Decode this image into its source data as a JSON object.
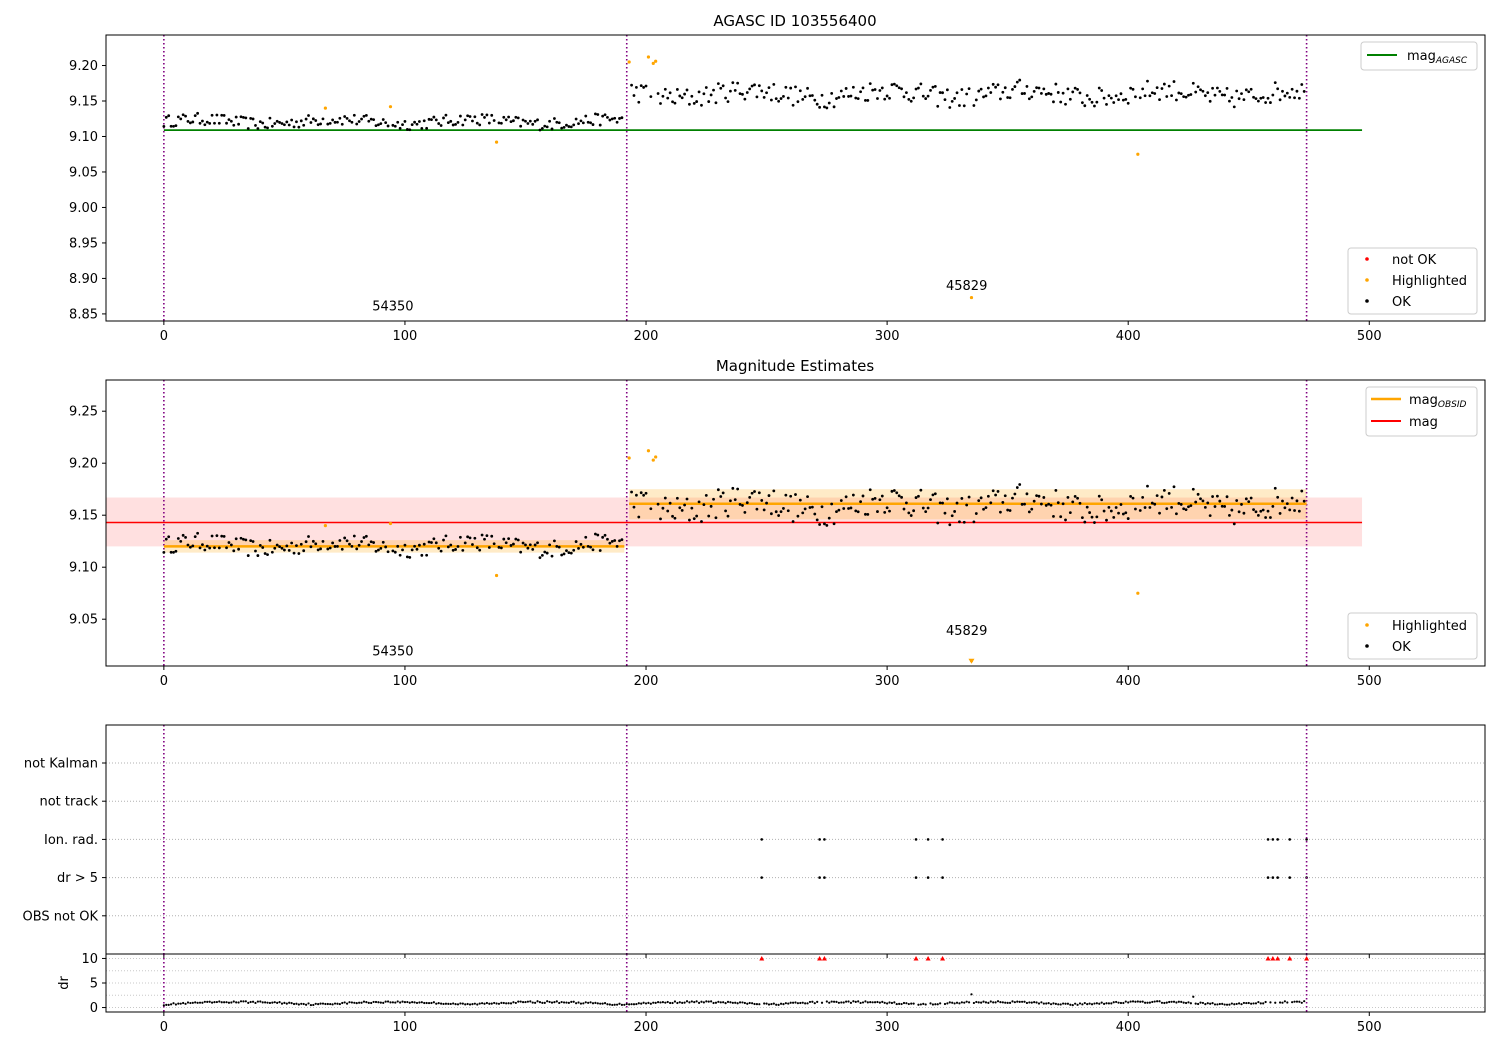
{
  "chart_data": [
    {
      "type": "scatter",
      "title": "AGASC ID 103556400",
      "xlabel": "",
      "ylabel": "",
      "xlim": [
        -24,
        548
      ],
      "ylim": [
        8.84,
        9.243
      ],
      "xticks": [
        0,
        100,
        200,
        300,
        400,
        500
      ],
      "yticks": [
        8.85,
        8.9,
        8.95,
        9.0,
        9.05,
        9.1,
        9.15,
        9.2
      ],
      "obsid_boundaries": [
        0,
        192,
        474
      ],
      "obsid_labels": [
        {
          "text": "54350",
          "x": 95,
          "y": 8.855
        },
        {
          "text": "45829",
          "x": 333,
          "y": 8.884
        }
      ],
      "lines": [
        {
          "name": "mag$_{AGASC}$",
          "label_main": "mag",
          "label_sub": "AGASC",
          "color": "#008000",
          "y": 9.109,
          "x": [
            0,
            497
          ]
        }
      ],
      "legend_points": [
        {
          "label": "not OK",
          "color": "#ff0000"
        },
        {
          "label": "Highlighted",
          "color": "#ffa500"
        },
        {
          "label": "OK",
          "color": "#000000"
        }
      ],
      "highlighted_points": {
        "x": [
          67,
          94,
          138,
          193,
          201,
          203,
          204,
          335,
          404
        ],
        "y": [
          9.14,
          9.142,
          9.092,
          9.205,
          9.212,
          9.203,
          9.206,
          8.873,
          9.075
        ]
      },
      "ok_segments": [
        {
          "x_start": 0,
          "x_end": 190,
          "mean": 9.121,
          "amplitude": 0.007
        },
        {
          "x_start": 193,
          "x_end": 473,
          "mean": 9.16,
          "amplitude": 0.012
        }
      ]
    },
    {
      "type": "scatter",
      "title": "Magnitude Estimates",
      "xlabel": "",
      "ylabel": "",
      "xlim": [
        -24,
        548
      ],
      "ylim": [
        9.005,
        9.28
      ],
      "xticks": [
        0,
        100,
        200,
        300,
        400,
        500
      ],
      "yticks": [
        9.05,
        9.1,
        9.15,
        9.2,
        9.25
      ],
      "obsid_boundaries": [
        0,
        192,
        474
      ],
      "obsid_labels": [
        {
          "text": "54350",
          "x": 95,
          "y": 9.015
        },
        {
          "text": "45829",
          "x": 333,
          "y": 9.035
        }
      ],
      "lines": [
        {
          "name": "mag$_{OBSID}$",
          "label_main": "mag",
          "label_sub": "OBSID",
          "color": "#ffa500",
          "segments": [
            {
              "x": [
                0,
                191
              ],
              "y": 9.12,
              "band": [
                9.114,
                9.126
              ]
            },
            {
              "x": [
                193,
                474
              ],
              "y": 9.161,
              "band": [
                9.146,
                9.175
              ]
            }
          ]
        },
        {
          "name": "mag",
          "label_main": "mag",
          "color": "#ff0000",
          "y": 9.143,
          "x": [
            -24,
            497
          ],
          "band": [
            9.12,
            9.167
          ]
        }
      ],
      "legend_points": [
        {
          "label": "Highlighted",
          "color": "#ffa500"
        },
        {
          "label": "OK",
          "color": "#000000"
        }
      ],
      "highlighted_points": {
        "x": [
          67,
          94,
          138,
          193,
          201,
          203,
          204,
          335,
          404
        ],
        "y": [
          9.14,
          9.142,
          9.092,
          9.205,
          9.212,
          9.203,
          9.206,
          9.01,
          9.075
        ]
      },
      "ok_segments": [
        {
          "x_start": 0,
          "x_end": 190,
          "mean": 9.121,
          "amplitude": 0.007
        },
        {
          "x_start": 193,
          "x_end": 473,
          "mean": 9.16,
          "amplitude": 0.012
        }
      ]
    },
    {
      "type": "scatter",
      "title": "",
      "flag_categories": [
        "not Kalman",
        "not track",
        "Ion. rad.",
        "dr > 5",
        "OBS not OK"
      ],
      "flags": {
        "not Kalman": [],
        "not track": [],
        "Ion. rad.": [
          248,
          272,
          274,
          312,
          317,
          323,
          458,
          460,
          462,
          467,
          474
        ],
        "dr > 5": [
          248,
          272,
          274,
          312,
          317,
          323,
          458,
          460,
          462,
          467,
          474
        ],
        "OBS not OK": []
      },
      "xlim": [
        -24,
        548
      ],
      "xticks": [
        0,
        100,
        200,
        300,
        400,
        500
      ],
      "obsid_boundaries": [
        0,
        192,
        474
      ]
    },
    {
      "type": "scatter",
      "title": "",
      "ylabel": "dr",
      "xlim": [
        -24,
        548
      ],
      "ylim": [
        -0.5,
        10.5
      ],
      "xticks": [
        0,
        100,
        200,
        300,
        400,
        500
      ],
      "yticks": [
        0,
        5,
        10
      ],
      "obsid_boundaries": [
        0,
        192,
        474
      ],
      "clipped_x": [
        248,
        272,
        274,
        312,
        317,
        323,
        458,
        460,
        462,
        467,
        474
      ],
      "clipped_value": 10,
      "spikes": [
        {
          "x": 335,
          "y": 2.7
        },
        {
          "x": 427,
          "y": 2.2
        }
      ]
    }
  ]
}
